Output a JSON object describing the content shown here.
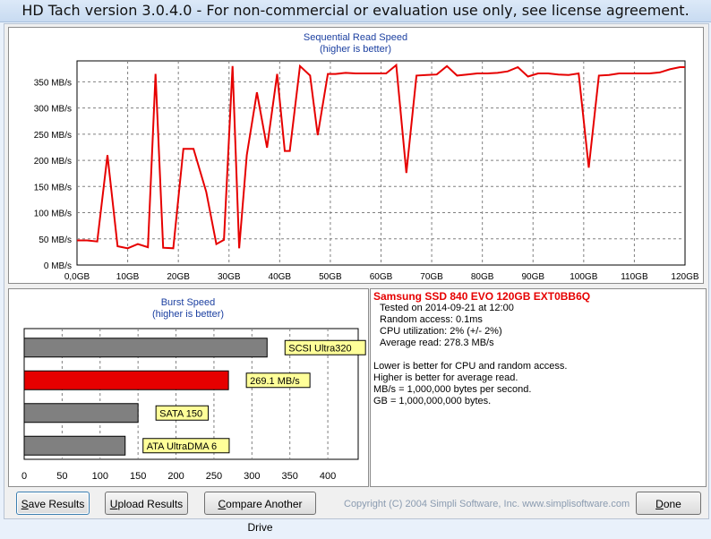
{
  "window": {
    "title": "HD Tach version 3.0.4.0  - For non-commercial or evaluation use only, see license agreement."
  },
  "read_chart": {
    "title": "Sequential Read Speed",
    "subtitle": "(higher is better)",
    "y_ticks": [
      "0 MB/s",
      "50 MB/s",
      "100 MB/s",
      "150 MB/s",
      "200 MB/s",
      "250 MB/s",
      "300 MB/s",
      "350 MB/s"
    ],
    "x_ticks": [
      "0,0GB",
      "10GB",
      "20GB",
      "30GB",
      "40GB",
      "50GB",
      "60GB",
      "70GB",
      "80GB",
      "90GB",
      "100GB",
      "110GB",
      "120GB"
    ]
  },
  "burst_chart": {
    "title": "Burst Speed",
    "subtitle": "(higher is better)",
    "x_ticks": [
      "0",
      "50",
      "100",
      "150",
      "200",
      "250",
      "300",
      "350",
      "400"
    ]
  },
  "chart_data": [
    {
      "type": "line",
      "title": "Sequential Read Speed",
      "subtitle": "(higher is better)",
      "xlabel": "",
      "ylabel": "",
      "xlim": [
        0,
        120
      ],
      "ylim": [
        0,
        390
      ],
      "color": "#e60000",
      "x": [
        0,
        2,
        4,
        6,
        8,
        10,
        12,
        14,
        15.5,
        17,
        19,
        21,
        23,
        25.5,
        27.5,
        29,
        30.7,
        32,
        33.5,
        35.5,
        37.5,
        39.5,
        41,
        42,
        44,
        46,
        47.5,
        49.5,
        51,
        53,
        55,
        57,
        59,
        61,
        63,
        65,
        67,
        69,
        71,
        73,
        75,
        77,
        79,
        81,
        83,
        85,
        87,
        89,
        91,
        93,
        95,
        97,
        99,
        101,
        103,
        105,
        107,
        109,
        111,
        113,
        115,
        117,
        119,
        120
      ],
      "y": [
        47,
        47,
        45,
        210,
        36,
        32,
        40,
        34,
        365,
        33,
        32,
        222,
        222,
        140,
        40,
        48,
        380,
        32,
        210,
        330,
        224,
        365,
        218,
        218,
        380,
        362,
        248,
        365,
        365,
        367,
        366,
        366,
        366,
        366,
        382,
        176,
        362,
        363,
        364,
        380,
        362,
        364,
        366,
        366,
        367,
        370,
        378,
        360,
        366,
        366,
        364,
        363,
        366,
        186,
        362,
        363,
        366,
        366,
        366,
        366,
        368,
        374,
        378,
        378
      ]
    },
    {
      "type": "bar",
      "title": "Burst Speed",
      "subtitle": "(higher is better)",
      "orientation": "horizontal",
      "xlim": [
        0,
        440
      ],
      "categories": [
        "SCSI Ultra320",
        "269.1 MB/s",
        "SATA 150",
        "ATA UltraDMA 6"
      ],
      "values": [
        320,
        269.1,
        150,
        133
      ],
      "colors": [
        "#808080",
        "#e60000",
        "#808080",
        "#808080"
      ]
    }
  ],
  "info": {
    "drive": "Samsung SSD 840 EVO 120GB EXT0BB6Q",
    "tested": "Tested on 2014-09-21 at 12:00",
    "random_access": "Random access: 0.1ms",
    "cpu": "CPU utilization: 2% (+/- 2%)",
    "avg_read": "Average read: 278.3 MB/s",
    "note1": "Lower is better for CPU and random access.",
    "note2": "Higher is better for average read.",
    "note3": "MB/s = 1,000,000 bytes per second.",
    "note4": "GB = 1,000,000,000 bytes."
  },
  "buttons": {
    "save": {
      "underline": "S",
      "rest": "ave Results"
    },
    "upload": {
      "underline": "U",
      "rest": "pload Results"
    },
    "compare": {
      "underline": "C",
      "rest": "ompare Another Drive"
    },
    "done": {
      "underline": "D",
      "rest": "one"
    }
  },
  "copyright": "Copyright (C) 2004 Simpli Software, Inc. www.simplisoftware.com"
}
